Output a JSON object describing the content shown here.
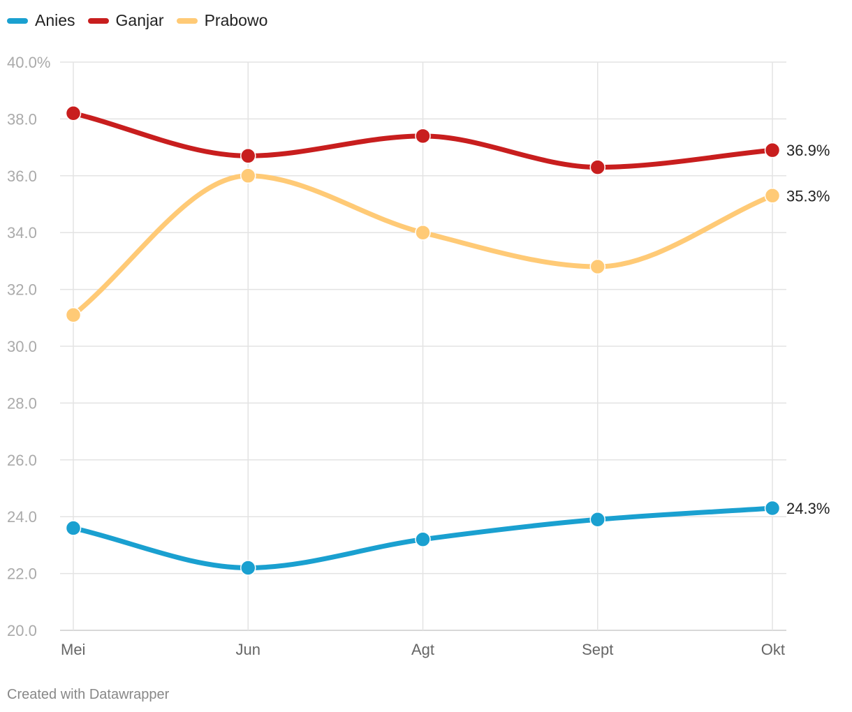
{
  "chart_data": {
    "type": "line",
    "categories": [
      "Mei",
      "Jun",
      "Agt",
      "Sept",
      "Okt"
    ],
    "series": [
      {
        "name": "Anies",
        "color": "#1aa0d0",
        "values": [
          23.6,
          22.2,
          23.2,
          23.9,
          24.3
        ],
        "end_label": "24.3%"
      },
      {
        "name": "Ganjar",
        "color": "#c81e1e",
        "values": [
          38.2,
          36.7,
          37.4,
          36.3,
          36.9
        ],
        "end_label": "36.9%"
      },
      {
        "name": "Prabowo",
        "color": "#ffca76",
        "values": [
          31.1,
          36.0,
          34.0,
          32.8,
          35.3
        ],
        "end_label": "35.3%"
      }
    ],
    "ylim": [
      20,
      40
    ],
    "yticks": [
      "20.0",
      "22.0",
      "24.0",
      "26.0",
      "28.0",
      "30.0",
      "32.0",
      "34.0",
      "36.0",
      "38.0",
      "40.0%"
    ],
    "ytick_values": [
      20,
      22,
      24,
      26,
      28,
      30,
      32,
      34,
      36,
      38,
      40
    ],
    "grid": true,
    "legend_position": "top-left",
    "line_shape": "curved"
  },
  "footer": {
    "credit": "Created with Datawrapper"
  }
}
